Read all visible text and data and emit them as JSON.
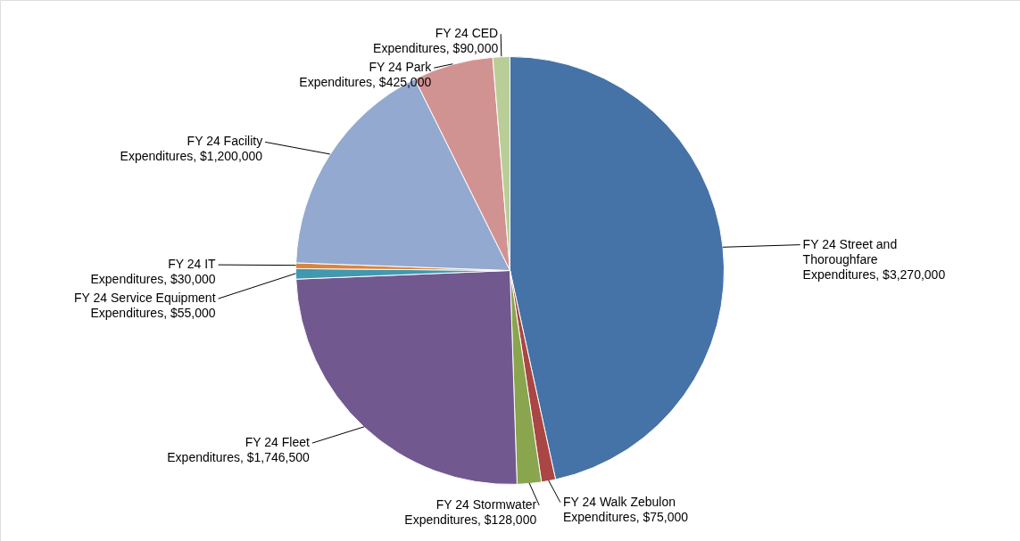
{
  "chart_data": {
    "type": "pie",
    "categories": [
      "FY 24 Street and Thoroughfare Expenditures",
      "FY 24 Walk Zebulon Expenditures",
      "FY 24 Stormwater Expenditures",
      "FY 24 Fleet Expenditures",
      "FY 24 Service Equipment Expenditures",
      "FY 24 IT Expenditures",
      "FY 24 Facility Expenditures",
      "FY 24 Park Expenditures",
      "FY 24 CED Expenditures"
    ],
    "values": [
      3270000,
      75000,
      128000,
      1746500,
      55000,
      30000,
      1200000,
      425000,
      90000
    ],
    "value_labels": [
      "$3,270,000",
      "$75,000",
      "$128,000",
      "$1,746,500",
      "$55,000",
      "$30,000",
      "$1,200,000",
      "$425,000",
      "$90,000"
    ],
    "colors": [
      "#4572a7",
      "#aa4643",
      "#89a54e",
      "#71588f",
      "#4198af",
      "#db843d",
      "#93a9cf",
      "#d19392",
      "#b9cd96"
    ]
  }
}
